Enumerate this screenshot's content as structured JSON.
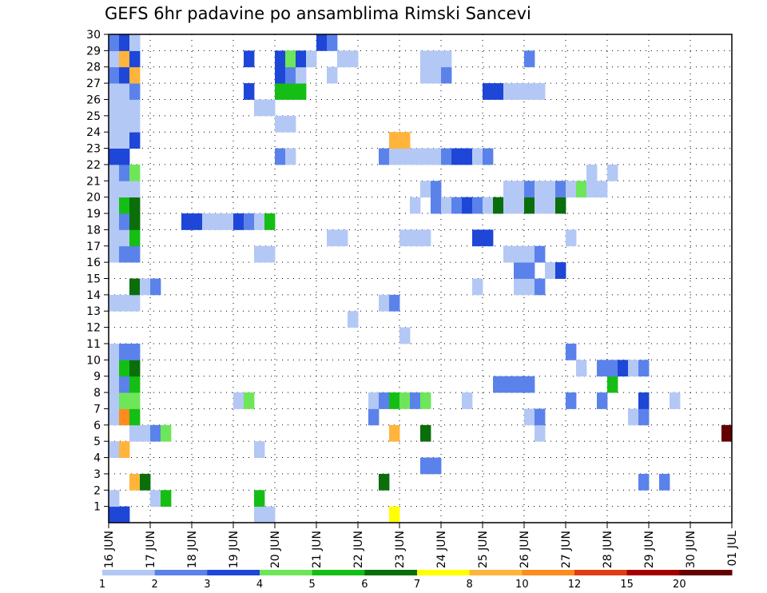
{
  "chart_data": {
    "type": "heatmap",
    "title": "GEFS 6hr padavine po ansamblima Rimski Sancevi",
    "xlabel": "",
    "ylabel": "",
    "x_tick_labels": [
      "16 JUN",
      "17 JUN",
      "18 JUN",
      "19 JUN",
      "20 JUN",
      "21 JUN",
      "22 JUN",
      "23 JUN",
      "24 JUN",
      "25 JUN",
      "26 JUN",
      "27 JUN",
      "28 JUN",
      "29 JUN",
      "30 JUN",
      "01 JUL"
    ],
    "x_range_steps": [
      0,
      60
    ],
    "y_tick_labels": [
      "1",
      "2",
      "3",
      "4",
      "5",
      "6",
      "7",
      "8",
      "9",
      "10",
      "11",
      "12",
      "13",
      "14",
      "15",
      "16",
      "17",
      "18",
      "19",
      "20",
      "21",
      "22",
      "23",
      "24",
      "25",
      "26",
      "27",
      "28",
      "29",
      "30"
    ],
    "y_range_members": [
      0,
      30
    ],
    "grid": "dotted",
    "colorbar": {
      "labels": [
        "1",
        "2",
        "3",
        "4",
        "5",
        "6",
        "7",
        "8",
        "10",
        "12",
        "15",
        "20"
      ],
      "colors": [
        "#b4c8f5",
        "#5a82ea",
        "#1e46d7",
        "#6ee65a",
        "#14be14",
        "#0a6e0a",
        "#ffff00",
        "#ffb43c",
        "#ff8c1e",
        "#e13c14",
        "#a50000",
        "#640000"
      ]
    },
    "cells": [
      [
        0,
        0,
        3
      ],
      [
        1,
        0,
        3
      ],
      [
        14,
        0,
        1
      ],
      [
        15,
        0,
        1
      ],
      [
        27,
        0,
        7
      ],
      [
        0,
        1,
        1
      ],
      [
        4,
        1,
        1
      ],
      [
        5,
        1,
        5
      ],
      [
        14,
        1,
        5
      ],
      [
        2,
        2,
        8
      ],
      [
        3,
        2,
        6
      ],
      [
        26,
        2,
        6
      ],
      [
        51,
        2,
        2
      ],
      [
        53,
        2,
        2
      ],
      [
        30,
        3,
        2
      ],
      [
        31,
        3,
        2
      ],
      [
        0,
        4,
        1
      ],
      [
        1,
        4,
        8
      ],
      [
        14,
        4,
        1
      ],
      [
        2,
        5,
        1
      ],
      [
        3,
        5,
        1
      ],
      [
        4,
        5,
        2
      ],
      [
        5,
        5,
        4
      ],
      [
        27,
        5,
        8
      ],
      [
        30,
        5,
        6
      ],
      [
        41,
        5,
        1
      ],
      [
        59,
        5,
        12
      ],
      [
        60,
        5,
        12
      ],
      [
        0,
        6,
        1
      ],
      [
        1,
        6,
        9
      ],
      [
        2,
        6,
        5
      ],
      [
        25,
        6,
        2
      ],
      [
        40,
        6,
        1
      ],
      [
        41,
        6,
        2
      ],
      [
        50,
        6,
        1
      ],
      [
        51,
        6,
        2
      ],
      [
        0,
        7,
        1
      ],
      [
        1,
        7,
        4
      ],
      [
        2,
        7,
        4
      ],
      [
        12,
        7,
        1
      ],
      [
        13,
        7,
        4
      ],
      [
        25,
        7,
        1
      ],
      [
        26,
        7,
        2
      ],
      [
        27,
        7,
        5
      ],
      [
        28,
        7,
        4
      ],
      [
        29,
        7,
        2
      ],
      [
        30,
        7,
        4
      ],
      [
        34,
        7,
        1
      ],
      [
        44,
        7,
        2
      ],
      [
        47,
        7,
        2
      ],
      [
        51,
        7,
        3
      ],
      [
        54,
        7,
        1
      ],
      [
        0,
        8,
        1
      ],
      [
        1,
        8,
        2
      ],
      [
        2,
        8,
        5
      ],
      [
        37,
        8,
        2
      ],
      [
        38,
        8,
        2
      ],
      [
        39,
        8,
        2
      ],
      [
        40,
        8,
        2
      ],
      [
        48,
        8,
        5
      ],
      [
        0,
        9,
        1
      ],
      [
        1,
        9,
        5
      ],
      [
        2,
        9,
        6
      ],
      [
        45,
        9,
        1
      ],
      [
        47,
        9,
        2
      ],
      [
        48,
        9,
        2
      ],
      [
        49,
        9,
        3
      ],
      [
        50,
        9,
        1
      ],
      [
        51,
        9,
        2
      ],
      [
        0,
        10,
        1
      ],
      [
        1,
        10,
        2
      ],
      [
        2,
        10,
        2
      ],
      [
        44,
        10,
        2
      ],
      [
        28,
        11,
        1
      ],
      [
        23,
        12,
        1
      ],
      [
        0,
        13,
        1
      ],
      [
        1,
        13,
        1
      ],
      [
        2,
        13,
        1
      ],
      [
        26,
        13,
        1
      ],
      [
        27,
        13,
        2
      ],
      [
        2,
        14,
        6
      ],
      [
        35,
        14,
        1
      ],
      [
        39,
        14,
        1
      ],
      [
        40,
        14,
        1
      ],
      [
        41,
        14,
        2
      ],
      [
        3,
        14,
        1
      ],
      [
        4,
        14,
        2
      ],
      [
        39,
        15,
        2
      ],
      [
        40,
        15,
        2
      ],
      [
        42,
        15,
        1
      ],
      [
        43,
        15,
        3
      ],
      [
        0,
        16,
        1
      ],
      [
        1,
        16,
        2
      ],
      [
        2,
        16,
        2
      ],
      [
        14,
        16,
        1
      ],
      [
        15,
        16,
        1
      ],
      [
        38,
        16,
        1
      ],
      [
        39,
        16,
        1
      ],
      [
        40,
        16,
        1
      ],
      [
        41,
        16,
        2
      ],
      [
        0,
        17,
        1
      ],
      [
        1,
        17,
        1
      ],
      [
        2,
        17,
        5
      ],
      [
        21,
        17,
        1
      ],
      [
        22,
        17,
        1
      ],
      [
        28,
        17,
        1
      ],
      [
        29,
        17,
        1
      ],
      [
        30,
        17,
        1
      ],
      [
        44,
        17,
        1
      ],
      [
        35,
        17,
        3
      ],
      [
        36,
        17,
        3
      ],
      [
        0,
        18,
        1
      ],
      [
        1,
        18,
        2
      ],
      [
        2,
        18,
        6
      ],
      [
        7,
        18,
        3
      ],
      [
        8,
        18,
        3
      ],
      [
        9,
        18,
        1
      ],
      [
        10,
        18,
        1
      ],
      [
        11,
        18,
        1
      ],
      [
        12,
        18,
        3
      ],
      [
        13,
        18,
        2
      ],
      [
        14,
        18,
        1
      ],
      [
        15,
        18,
        5
      ],
      [
        0,
        19,
        1
      ],
      [
        1,
        19,
        5
      ],
      [
        2,
        19,
        6
      ],
      [
        29,
        19,
        1
      ],
      [
        31,
        19,
        2
      ],
      [
        32,
        19,
        1
      ],
      [
        33,
        19,
        2
      ],
      [
        34,
        19,
        3
      ],
      [
        35,
        19,
        2
      ],
      [
        36,
        19,
        1
      ],
      [
        37,
        19,
        6
      ],
      [
        38,
        19,
        1
      ],
      [
        39,
        19,
        1
      ],
      [
        40,
        19,
        6
      ],
      [
        41,
        19,
        1
      ],
      [
        42,
        19,
        1
      ],
      [
        43,
        19,
        6
      ],
      [
        0,
        20,
        1
      ],
      [
        1,
        20,
        1
      ],
      [
        2,
        20,
        1
      ],
      [
        30,
        20,
        1
      ],
      [
        31,
        20,
        2
      ],
      [
        38,
        20,
        1
      ],
      [
        39,
        20,
        1
      ],
      [
        40,
        20,
        2
      ],
      [
        41,
        20,
        1
      ],
      [
        42,
        20,
        1
      ],
      [
        43,
        20,
        2
      ],
      [
        44,
        20,
        1
      ],
      [
        45,
        20,
        4
      ],
      [
        46,
        20,
        1
      ],
      [
        47,
        20,
        1
      ],
      [
        0,
        21,
        1
      ],
      [
        1,
        21,
        2
      ],
      [
        2,
        21,
        4
      ],
      [
        46,
        21,
        1
      ],
      [
        48,
        21,
        1
      ],
      [
        0,
        22,
        3
      ],
      [
        1,
        22,
        3
      ],
      [
        16,
        22,
        2
      ],
      [
        17,
        22,
        1
      ],
      [
        26,
        22,
        2
      ],
      [
        27,
        22,
        1
      ],
      [
        28,
        22,
        1
      ],
      [
        29,
        22,
        1
      ],
      [
        30,
        22,
        1
      ],
      [
        31,
        22,
        1
      ],
      [
        32,
        22,
        2
      ],
      [
        33,
        22,
        3
      ],
      [
        34,
        22,
        3
      ],
      [
        35,
        22,
        1
      ],
      [
        36,
        22,
        2
      ],
      [
        0,
        23,
        1
      ],
      [
        1,
        23,
        1
      ],
      [
        2,
        23,
        3
      ],
      [
        27,
        23,
        8
      ],
      [
        28,
        23,
        8
      ],
      [
        0,
        24,
        1
      ],
      [
        1,
        24,
        1
      ],
      [
        2,
        24,
        1
      ],
      [
        16,
        24,
        1
      ],
      [
        17,
        24,
        1
      ],
      [
        0,
        25,
        1
      ],
      [
        1,
        25,
        1
      ],
      [
        2,
        25,
        1
      ],
      [
        14,
        25,
        1
      ],
      [
        15,
        25,
        1
      ],
      [
        0,
        26,
        1
      ],
      [
        1,
        26,
        1
      ],
      [
        2,
        26,
        2
      ],
      [
        16,
        26,
        5
      ],
      [
        17,
        26,
        5
      ],
      [
        18,
        26,
        5
      ],
      [
        36,
        26,
        3
      ],
      [
        37,
        26,
        3
      ],
      [
        38,
        26,
        1
      ],
      [
        39,
        26,
        1
      ],
      [
        40,
        26,
        1
      ],
      [
        41,
        26,
        1
      ],
      [
        0,
        27,
        2
      ],
      [
        1,
        27,
        3
      ],
      [
        2,
        27,
        8
      ],
      [
        16,
        27,
        3
      ],
      [
        17,
        27,
        2
      ],
      [
        18,
        27,
        1
      ],
      [
        30,
        27,
        1
      ],
      [
        31,
        27,
        1
      ],
      [
        32,
        27,
        2
      ],
      [
        0,
        28,
        1
      ],
      [
        1,
        28,
        8
      ],
      [
        2,
        28,
        3
      ],
      [
        16,
        28,
        3
      ],
      [
        17,
        28,
        5
      ],
      [
        18,
        28,
        5
      ],
      [
        30,
        28,
        1
      ],
      [
        31,
        28,
        1
      ],
      [
        32,
        28,
        1
      ],
      [
        40,
        28,
        2
      ],
      [
        0,
        29,
        3
      ],
      [
        1,
        29,
        3
      ],
      [
        2,
        29,
        1
      ]
    ],
    "raw_cells": [
      [
        0,
        29,
        2
      ],
      [
        1,
        29,
        3
      ],
      [
        2,
        29,
        1
      ],
      [
        13,
        28,
        3
      ],
      [
        13,
        26,
        3
      ],
      [
        17,
        28,
        4
      ],
      [
        18,
        28,
        3
      ],
      [
        19,
        28,
        1
      ],
      [
        21,
        27,
        1
      ],
      [
        20,
        29,
        3
      ],
      [
        21,
        29,
        2
      ],
      [
        22,
        28,
        1
      ],
      [
        23,
        28,
        1
      ]
    ]
  }
}
